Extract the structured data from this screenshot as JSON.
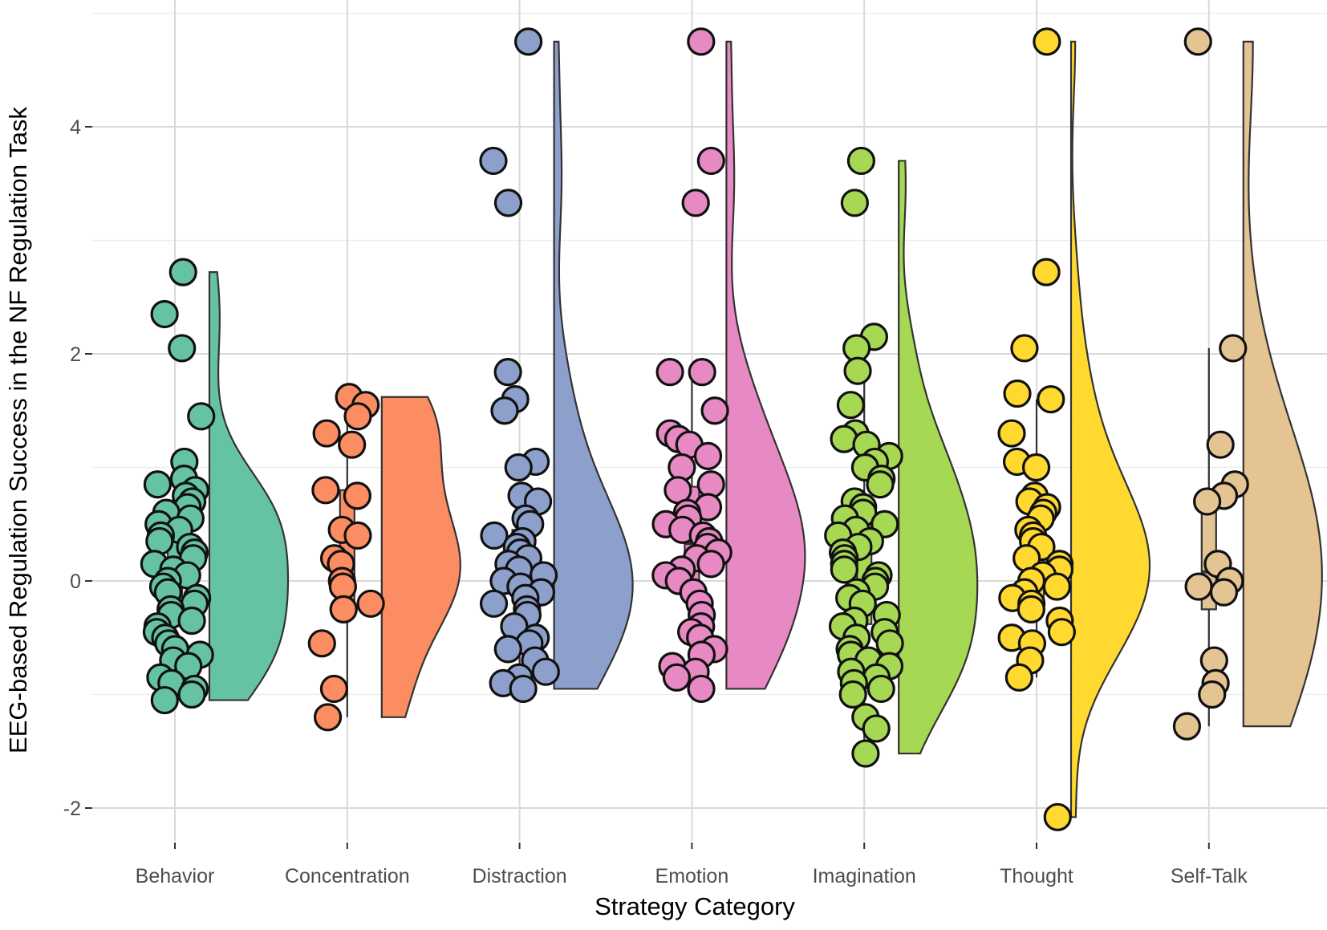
{
  "chart_data": {
    "type": "raincloud",
    "title": "",
    "xlabel": "Strategy Category",
    "ylabel": "EEG-based Regulation Success in the NF Regulation Task",
    "ylim": [
      -2.45,
      5.1
    ],
    "yticks": [
      -2,
      0,
      2,
      4
    ],
    "ytick_labels": [
      "-2",
      "0",
      "2",
      "4"
    ],
    "grid": true,
    "categories": [
      {
        "name": "Behavior",
        "color": "#66C2A5",
        "box": {
          "q1": -0.25,
          "median": 0.05,
          "q3": 0.42,
          "whisker_low": -1.0,
          "whisker_high": 0.9
        },
        "points": [
          2.72,
          2.35,
          2.05,
          1.45,
          1.05,
          0.9,
          0.85,
          0.8,
          0.75,
          0.7,
          0.65,
          0.6,
          0.55,
          0.5,
          0.45,
          0.4,
          0.35,
          0.3,
          0.25,
          0.2,
          0.15,
          0.1,
          0.05,
          0.0,
          -0.05,
          -0.1,
          -0.15,
          -0.2,
          -0.25,
          -0.3,
          -0.35,
          -0.4,
          -0.45,
          -0.5,
          -0.55,
          -0.6,
          -0.65,
          -0.7,
          -0.75,
          -0.85,
          -0.9,
          -0.95,
          -1.0,
          -1.05
        ]
      },
      {
        "name": "Concentration",
        "color": "#FC8D62",
        "box": {
          "q1": -0.18,
          "median": 0.18,
          "q3": 0.8,
          "whisker_low": -1.2,
          "whisker_high": 1.62
        },
        "points": [
          1.62,
          1.55,
          1.45,
          1.3,
          1.2,
          0.8,
          0.75,
          0.45,
          0.4,
          0.2,
          0.15,
          0.0,
          -0.05,
          -0.2,
          -0.25,
          -0.55,
          -0.95,
          -1.2
        ]
      },
      {
        "name": "Distraction",
        "color": "#8DA0CB",
        "box": {
          "q1": -0.18,
          "median": 0.17,
          "q3": 0.45,
          "whisker_low": -0.95,
          "whisker_high": 0.75
        },
        "points": [
          4.75,
          3.7,
          3.33,
          1.84,
          1.6,
          1.5,
          1.05,
          1.0,
          0.75,
          0.7,
          0.55,
          0.5,
          0.4,
          0.35,
          0.3,
          0.25,
          0.2,
          0.15,
          0.1,
          0.05,
          0.0,
          -0.05,
          -0.1,
          -0.15,
          -0.2,
          -0.25,
          -0.3,
          -0.4,
          -0.5,
          -0.55,
          -0.6,
          -0.7,
          -0.8,
          -0.85,
          -0.9,
          -0.95
        ]
      },
      {
        "name": "Emotion",
        "color": "#E78AC3",
        "box": {
          "q1": -0.05,
          "median": 0.33,
          "q3": 0.83,
          "whisker_low": -0.95,
          "whisker_high": 1.84
        },
        "points": [
          4.75,
          3.7,
          3.33,
          1.84,
          1.84,
          1.5,
          1.3,
          1.25,
          1.2,
          1.1,
          1.0,
          0.85,
          0.8,
          0.65,
          0.6,
          0.55,
          0.5,
          0.45,
          0.4,
          0.35,
          0.3,
          0.25,
          0.2,
          0.15,
          0.1,
          0.05,
          0.0,
          -0.1,
          -0.2,
          -0.3,
          -0.4,
          -0.45,
          -0.5,
          -0.6,
          -0.65,
          -0.75,
          -0.8,
          -0.85,
          -0.95
        ]
      },
      {
        "name": "Imagination",
        "color": "#A6D854",
        "box": {
          "q1": -0.38,
          "median": 0.25,
          "q3": 0.7,
          "whisker_low": -1.52,
          "whisker_high": 2.15
        },
        "points": [
          3.7,
          3.33,
          2.15,
          2.05,
          1.85,
          1.55,
          1.3,
          1.25,
          1.2,
          1.1,
          1.05,
          1.0,
          0.9,
          0.85,
          0.7,
          0.65,
          0.6,
          0.55,
          0.5,
          0.45,
          0.4,
          0.35,
          0.3,
          0.25,
          0.2,
          0.15,
          0.1,
          0.05,
          0.0,
          -0.05,
          -0.1,
          -0.15,
          -0.2,
          -0.3,
          -0.35,
          -0.4,
          -0.45,
          -0.5,
          -0.55,
          -0.6,
          -0.65,
          -0.7,
          -0.75,
          -0.8,
          -0.85,
          -0.9,
          -0.95,
          -1.0,
          -1.2,
          -1.3,
          -1.52
        ]
      },
      {
        "name": "Thought",
        "color": "#FFD92F",
        "box": {
          "q1": -0.18,
          "median": 0.2,
          "q3": 0.65,
          "whisker_low": -0.85,
          "whisker_high": 1.6
        },
        "points": [
          4.75,
          2.72,
          2.05,
          1.65,
          1.6,
          1.3,
          1.05,
          1.0,
          0.75,
          0.7,
          0.65,
          0.6,
          0.55,
          0.45,
          0.4,
          0.35,
          0.3,
          0.2,
          0.15,
          0.1,
          0.05,
          0.0,
          -0.05,
          -0.1,
          -0.15,
          -0.2,
          -0.25,
          -0.35,
          -0.45,
          -0.5,
          -0.55,
          -0.7,
          -0.85,
          -2.08
        ]
      },
      {
        "name": "Self-Talk",
        "color": "#E5C494",
        "box": {
          "q1": -0.25,
          "median": 0.08,
          "q3": 0.75,
          "whisker_low": -1.28,
          "whisker_high": 2.05
        },
        "points": [
          4.75,
          2.05,
          1.2,
          0.85,
          0.75,
          0.7,
          0.15,
          0.0,
          -0.05,
          -0.1,
          -0.7,
          -0.9,
          -1.0,
          -1.28
        ]
      }
    ]
  }
}
